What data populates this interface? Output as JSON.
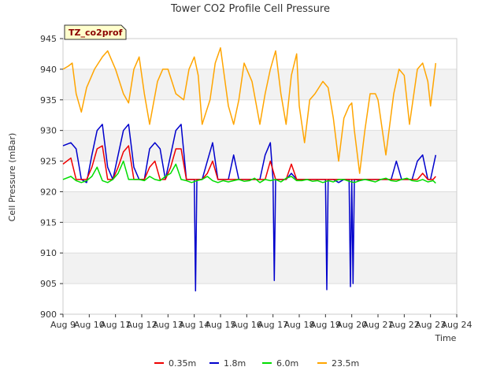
{
  "chart_data": {
    "type": "line",
    "title": "Tower CO2 Profile Cell Pressure",
    "xlabel": "Time",
    "ylabel": "Cell Pressure (mBar)",
    "ylim": [
      900,
      945
    ],
    "yticks": [
      900,
      905,
      910,
      915,
      920,
      925,
      930,
      935,
      940,
      945
    ],
    "xlim": [
      9,
      24
    ],
    "xticks": [
      {
        "v": 9,
        "label": "Aug 9"
      },
      {
        "v": 10,
        "label": "Aug 10"
      },
      {
        "v": 11,
        "label": "Aug 11"
      },
      {
        "v": 12,
        "label": "Aug 12"
      },
      {
        "v": 13,
        "label": "Aug 13"
      },
      {
        "v": 14,
        "label": "Aug 14"
      },
      {
        "v": 15,
        "label": "Aug 15"
      },
      {
        "v": 16,
        "label": "Aug 16"
      },
      {
        "v": 17,
        "label": "Aug 17"
      },
      {
        "v": 18,
        "label": "Aug 18"
      },
      {
        "v": 19,
        "label": "Aug 19"
      },
      {
        "v": 20,
        "label": "Aug 20"
      },
      {
        "v": 21,
        "label": "Aug 21"
      },
      {
        "v": 22,
        "label": "Aug 22"
      },
      {
        "v": 23,
        "label": "Aug 23"
      },
      {
        "v": 24,
        "label": "Aug 24"
      }
    ],
    "grid": true,
    "legend_position": "bottom",
    "badge": "TZ_co2prof",
    "series": [
      {
        "name": "23.5m",
        "color": "#ffa500",
        "x": [
          9.0,
          9.2,
          9.35,
          9.5,
          9.7,
          9.9,
          10.2,
          10.5,
          10.7,
          11.0,
          11.3,
          11.5,
          11.7,
          11.9,
          12.1,
          12.3,
          12.6,
          12.8,
          13.0,
          13.3,
          13.6,
          13.8,
          14.0,
          14.15,
          14.3,
          14.6,
          14.8,
          15.0,
          15.3,
          15.5,
          15.7,
          15.9,
          16.2,
          16.5,
          16.7,
          16.9,
          17.1,
          17.3,
          17.5,
          17.7,
          17.9,
          18.0,
          18.2,
          18.4,
          18.6,
          18.9,
          19.1,
          19.3,
          19.5,
          19.7,
          19.9,
          20.0,
          20.1,
          20.3,
          20.5,
          20.7,
          20.9,
          21.0,
          21.3,
          21.6,
          21.8,
          22.0,
          22.2,
          22.5,
          22.7,
          22.9,
          23.0,
          23.2
        ],
        "y": [
          940,
          940.5,
          941,
          936,
          933,
          937,
          940,
          942,
          943,
          940,
          936,
          934.5,
          940,
          942,
          936,
          931,
          938,
          940,
          940,
          936,
          935,
          940,
          942,
          939,
          931,
          935,
          941,
          943.5,
          934,
          931,
          935,
          941,
          938,
          931,
          936,
          940,
          943,
          936,
          931,
          939,
          942.5,
          934,
          928,
          935,
          936,
          938,
          937,
          932,
          925,
          932,
          934,
          934.5,
          930,
          923,
          930,
          936,
          936,
          935,
          926,
          936,
          940,
          939,
          931,
          940,
          941,
          938,
          934,
          941
        ]
      },
      {
        "name": "1.8m",
        "color": "#0000cc",
        "x": [
          9.0,
          9.3,
          9.5,
          9.7,
          9.9,
          10.1,
          10.3,
          10.5,
          10.7,
          10.9,
          11.1,
          11.3,
          11.5,
          11.7,
          11.9,
          12.1,
          12.3,
          12.5,
          12.7,
          12.9,
          13.1,
          13.3,
          13.5,
          13.7,
          13.9,
          14.0,
          14.05,
          14.1,
          14.15,
          14.3,
          14.5,
          14.7,
          14.9,
          15.1,
          15.3,
          15.5,
          15.7,
          15.9,
          16.1,
          16.3,
          16.5,
          16.7,
          16.9,
          17.0,
          17.05,
          17.1,
          17.15,
          17.3,
          17.5,
          17.7,
          17.9,
          18.1,
          18.3,
          18.5,
          18.7,
          18.9,
          19.0,
          19.05,
          19.1,
          19.15,
          19.3,
          19.5,
          19.7,
          19.9,
          19.95,
          20.0,
          20.05,
          20.1,
          20.15,
          20.3,
          20.5,
          20.7,
          20.9,
          21.1,
          21.3,
          21.5,
          21.7,
          21.9,
          22.1,
          22.3,
          22.5,
          22.7,
          22.9,
          23.0,
          23.2
        ],
        "y": [
          927.5,
          928,
          927,
          922,
          921.5,
          926,
          930,
          931,
          924,
          922,
          926,
          930,
          931,
          924,
          922,
          922,
          927,
          928,
          927,
          922,
          926,
          930,
          931,
          922,
          922,
          922,
          903.8,
          922,
          922,
          922,
          925,
          928,
          922,
          922,
          922,
          926,
          922,
          922,
          922,
          922,
          922,
          926,
          928,
          922,
          905.5,
          922,
          922,
          922,
          922,
          923,
          922,
          922,
          922,
          922,
          922,
          922,
          922,
          904,
          922,
          922,
          922,
          921.5,
          922,
          922,
          904.5,
          922,
          905,
          922,
          922,
          921.8,
          922,
          922,
          922,
          922,
          922,
          922,
          925,
          922,
          922,
          922,
          925,
          926,
          922,
          922,
          926
        ]
      },
      {
        "name": "0.35m",
        "color": "#ee0000",
        "x": [
          9.0,
          9.3,
          9.5,
          9.7,
          9.9,
          10.1,
          10.3,
          10.5,
          10.7,
          10.9,
          11.1,
          11.3,
          11.5,
          11.7,
          11.9,
          12.1,
          12.3,
          12.5,
          12.7,
          12.9,
          13.1,
          13.3,
          13.5,
          13.7,
          13.9,
          14.1,
          14.3,
          14.5,
          14.7,
          14.9,
          15.1,
          15.3,
          15.5,
          15.7,
          15.9,
          16.1,
          16.3,
          16.5,
          16.7,
          16.9,
          17.1,
          17.3,
          17.5,
          17.7,
          17.9,
          18.1,
          18.3,
          18.5,
          18.7,
          18.9,
          19.1,
          19.3,
          19.5,
          19.7,
          19.9,
          20.1,
          20.3,
          20.5,
          20.7,
          20.9,
          21.1,
          21.3,
          21.5,
          21.7,
          21.9,
          22.1,
          22.3,
          22.5,
          22.7,
          22.9,
          23.1,
          23.2
        ],
        "y": [
          924.5,
          925.5,
          922,
          922,
          922,
          924,
          927,
          927.5,
          922,
          922,
          924,
          926.5,
          927.5,
          922,
          922,
          922,
          924,
          925,
          922,
          922,
          924,
          927,
          927,
          922,
          922,
          922,
          922,
          923,
          925,
          922,
          922,
          922,
          922,
          922,
          922,
          922,
          922,
          922,
          922,
          925,
          922,
          922,
          922,
          924.5,
          922,
          922,
          922,
          922,
          922,
          922,
          922,
          922,
          922,
          922,
          922,
          922,
          922,
          922,
          922,
          922,
          922,
          922,
          922,
          922,
          922,
          922,
          922,
          922,
          923,
          922,
          922,
          922.5
        ]
      },
      {
        "name": "6.0m",
        "color": "#00dd00",
        "x": [
          9.0,
          9.3,
          9.5,
          9.7,
          9.9,
          10.1,
          10.3,
          10.5,
          10.7,
          10.9,
          11.1,
          11.3,
          11.5,
          11.7,
          11.9,
          12.1,
          12.3,
          12.5,
          12.7,
          12.9,
          13.1,
          13.3,
          13.5,
          13.7,
          13.9,
          14.1,
          14.3,
          14.5,
          14.7,
          14.9,
          15.1,
          15.3,
          15.5,
          15.7,
          15.9,
          16.1,
          16.3,
          16.5,
          16.7,
          16.9,
          17.1,
          17.3,
          17.5,
          17.7,
          17.9,
          18.1,
          18.3,
          18.5,
          18.7,
          18.9,
          19.1,
          19.3,
          19.5,
          19.7,
          19.9,
          20.1,
          20.3,
          20.5,
          20.7,
          20.9,
          21.1,
          21.3,
          21.5,
          21.7,
          21.9,
          22.1,
          22.3,
          22.5,
          22.7,
          22.9,
          23.1,
          23.2
        ],
        "y": [
          922,
          922.5,
          921.8,
          921.5,
          921.8,
          922.5,
          924,
          921.8,
          921.5,
          922,
          923,
          925,
          922,
          922,
          922,
          921.8,
          922.5,
          922,
          921.8,
          922.5,
          923,
          924.5,
          922,
          921.8,
          921.5,
          921.8,
          922,
          922.5,
          921.8,
          921.5,
          921.8,
          921.6,
          921.8,
          922,
          921.7,
          921.8,
          922.2,
          921.5,
          922,
          921.8,
          922,
          921.6,
          922.2,
          922.5,
          921.8,
          921.8,
          922,
          921.7,
          921.8,
          921.5,
          921.8,
          921.6,
          922,
          922,
          921.7,
          921.5,
          921.8,
          922,
          921.8,
          921.6,
          922,
          922.2,
          921.8,
          921.7,
          922,
          922.2,
          921.8,
          921.7,
          922,
          921.6,
          921.8,
          921.4
        ]
      }
    ]
  }
}
